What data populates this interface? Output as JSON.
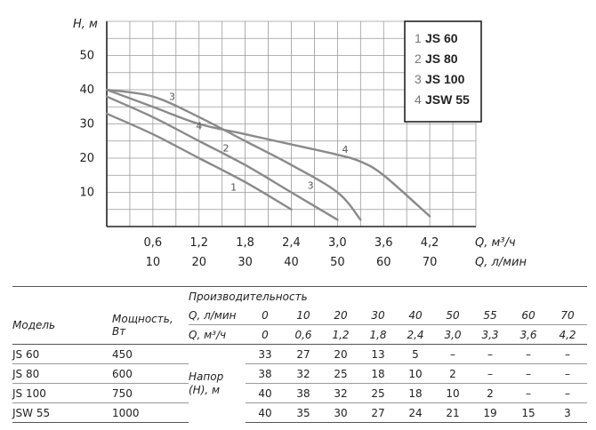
{
  "chart_data": {
    "type": "line",
    "ylabel": "H, м",
    "xlabel_primary": "Q, м³/ч",
    "xlabel_secondary": "Q, л/мин",
    "x_ticks_m3h": [
      "0,6",
      "1,2",
      "1,8",
      "2,4",
      "3,0",
      "3,6",
      "4,2"
    ],
    "x_ticks_lmin": [
      "10",
      "20",
      "30",
      "40",
      "50",
      "60",
      "70"
    ],
    "y_ticks": [
      "10",
      "20",
      "30",
      "40",
      "50"
    ],
    "xlim": [
      0,
      4.8
    ],
    "ylim": [
      0,
      60
    ],
    "grid": true,
    "legend_position": "top-right",
    "series": [
      {
        "name": "JS 60",
        "num": "1",
        "label": "1",
        "x": [
          0,
          0.6,
          1.2,
          1.8,
          2.4
        ],
        "y": [
          33,
          27,
          20,
          13,
          5
        ],
        "label_at": [
          1.65,
          10.5
        ]
      },
      {
        "name": "JS 80",
        "num": "2",
        "label": "2",
        "x": [
          0,
          0.6,
          1.2,
          1.8,
          2.4,
          3.0
        ],
        "y": [
          38,
          32,
          25,
          18,
          10,
          2
        ],
        "label_at": [
          1.55,
          22
        ]
      },
      {
        "name": "JS 100",
        "num": "3",
        "label": "3",
        "x": [
          0,
          0.6,
          1.2,
          1.8,
          2.4,
          3.0,
          3.3
        ],
        "y": [
          40,
          38,
          32,
          25,
          18,
          10,
          2
        ],
        "label_at": [
          0.85,
          37
        ],
        "label_at2": [
          2.65,
          11
        ]
      },
      {
        "name": "JSW 55",
        "num": "4",
        "label": "4",
        "x": [
          0,
          0.6,
          1.2,
          1.8,
          2.4,
          3.0,
          3.3,
          3.6,
          4.2
        ],
        "y": [
          40,
          35,
          30,
          27,
          24,
          21,
          19,
          15,
          3
        ],
        "label_at": [
          1.2,
          28.5
        ],
        "label_at2": [
          3.1,
          21.5
        ]
      }
    ]
  },
  "table": {
    "col_model": "Модель",
    "col_power": "Мощность, Вт",
    "col_perf": "Производительность",
    "row_lmin_label": "Q, л/мин",
    "row_m3h_label": "Q, м³/ч",
    "lmin": [
      "0",
      "10",
      "20",
      "30",
      "40",
      "50",
      "55",
      "60",
      "70"
    ],
    "m3h": [
      "0",
      "0,6",
      "1,2",
      "1,8",
      "2,4",
      "3,0",
      "3,3",
      "3,6",
      "4,2"
    ],
    "head_label": "Напор (Н), м",
    "rows": [
      {
        "model": "JS 60",
        "power": "450",
        "values": [
          "33",
          "27",
          "20",
          "13",
          "5",
          "–",
          "–",
          "–",
          "–"
        ]
      },
      {
        "model": "JS 80",
        "power": "600",
        "values": [
          "38",
          "32",
          "25",
          "18",
          "10",
          "2",
          "–",
          "–",
          "–"
        ]
      },
      {
        "model": "JS 100",
        "power": "750",
        "values": [
          "40",
          "38",
          "32",
          "25",
          "18",
          "10",
          "2",
          "–",
          "–"
        ]
      },
      {
        "model": "JSW 55",
        "power": "1000",
        "values": [
          "40",
          "35",
          "30",
          "27",
          "24",
          "21",
          "19",
          "15",
          "3"
        ]
      }
    ]
  }
}
